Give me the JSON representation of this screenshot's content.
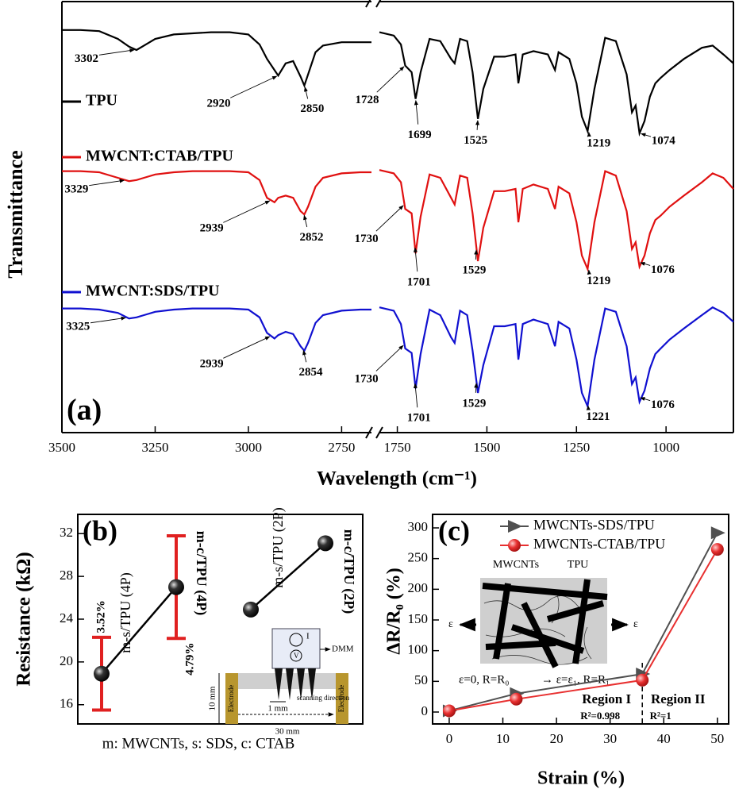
{
  "chart_data": [
    {
      "type": "spectrum",
      "label": "(a)",
      "ylabel": "Transmittance",
      "xlabel": "Wavelength (cm⁻¹)",
      "segments": [
        {
          "xlim": [
            3500,
            2670
          ],
          "xticks": [
            3500,
            3250,
            3000,
            2750
          ],
          "x": [
            3500,
            3450,
            3400,
            3350,
            3320,
            3300,
            3280,
            3250,
            3200,
            3150,
            3100,
            3050,
            3000,
            2970,
            2950,
            2930,
            2920,
            2900,
            2880,
            2860,
            2850,
            2840,
            2820,
            2800,
            2750,
            2700,
            2670
          ]
        },
        {
          "xlim": [
            1800,
            812
          ],
          "xticks": [
            1750,
            1500,
            1250,
            1000
          ],
          "x": [
            1800,
            1760,
            1740,
            1728,
            1710,
            1699,
            1685,
            1660,
            1630,
            1600,
            1590,
            1575,
            1555,
            1540,
            1525,
            1510,
            1480,
            1450,
            1420,
            1412,
            1400,
            1370,
            1330,
            1310,
            1300,
            1270,
            1250,
            1235,
            1219,
            1200,
            1170,
            1140,
            1110,
            1095,
            1085,
            1074,
            1060,
            1045,
            1030,
            1015,
            990,
            950,
            900,
            870,
            840,
            812
          ]
        }
      ],
      "series": [
        {
          "name": "TPU",
          "color": "#000000",
          "values": [
            [
              0.98,
              0.98,
              0.97,
              0.9,
              0.83,
              0.8,
              0.84,
              0.9,
              0.94,
              0.95,
              0.96,
              0.96,
              0.94,
              0.85,
              0.72,
              0.62,
              0.57,
              0.68,
              0.7,
              0.56,
              0.48,
              0.58,
              0.78,
              0.84,
              0.87,
              0.87,
              0.87
            ],
            [
              0.96,
              0.93,
              0.85,
              0.66,
              0.6,
              0.36,
              0.6,
              0.9,
              0.88,
              0.72,
              0.68,
              0.9,
              0.88,
              0.6,
              0.18,
              0.45,
              0.74,
              0.74,
              0.76,
              0.5,
              0.76,
              0.79,
              0.76,
              0.62,
              0.78,
              0.72,
              0.5,
              0.2,
              0.07,
              0.45,
              0.91,
              0.88,
              0.58,
              0.24,
              0.3,
              0.05,
              0.16,
              0.38,
              0.5,
              0.55,
              0.62,
              0.72,
              0.82,
              0.84,
              0.76,
              0.68
            ]
          ],
          "peaks": [
            3302,
            2920,
            2850,
            1728,
            1699,
            1525,
            1219,
            1074
          ]
        },
        {
          "name": "MWCNT:CTAB/TPU",
          "color": "#e01010",
          "values": [
            [
              0.96,
              0.96,
              0.95,
              0.9,
              0.87,
              0.88,
              0.9,
              0.93,
              0.95,
              0.96,
              0.96,
              0.96,
              0.95,
              0.88,
              0.72,
              0.68,
              0.72,
              0.74,
              0.72,
              0.6,
              0.57,
              0.64,
              0.82,
              0.9,
              0.94,
              0.95,
              0.95
            ],
            [
              0.97,
              0.94,
              0.86,
              0.62,
              0.58,
              0.22,
              0.55,
              0.93,
              0.9,
              0.72,
              0.66,
              0.92,
              0.9,
              0.58,
              0.15,
              0.45,
              0.78,
              0.78,
              0.8,
              0.5,
              0.8,
              0.84,
              0.8,
              0.62,
              0.82,
              0.76,
              0.5,
              0.2,
              0.08,
              0.5,
              0.96,
              0.92,
              0.6,
              0.26,
              0.32,
              0.1,
              0.2,
              0.4,
              0.52,
              0.56,
              0.64,
              0.74,
              0.86,
              0.94,
              0.9,
              0.8
            ]
          ],
          "peaks": [
            3329,
            2939,
            2852,
            1730,
            1701,
            1529,
            1219,
            1076
          ]
        },
        {
          "name": "MWCNT:SDS/TPU",
          "color": "#1010d0",
          "values": [
            [
              0.96,
              0.96,
              0.95,
              0.92,
              0.87,
              0.88,
              0.9,
              0.93,
              0.95,
              0.96,
              0.96,
              0.96,
              0.95,
              0.88,
              0.74,
              0.69,
              0.72,
              0.75,
              0.73,
              0.62,
              0.58,
              0.65,
              0.83,
              0.9,
              0.94,
              0.95,
              0.95
            ],
            [
              0.97,
              0.94,
              0.82,
              0.6,
              0.56,
              0.24,
              0.55,
              0.95,
              0.9,
              0.7,
              0.65,
              0.94,
              0.9,
              0.58,
              0.2,
              0.45,
              0.8,
              0.8,
              0.82,
              0.5,
              0.82,
              0.86,
              0.82,
              0.62,
              0.84,
              0.78,
              0.5,
              0.2,
              0.08,
              0.5,
              0.96,
              0.93,
              0.62,
              0.28,
              0.34,
              0.12,
              0.22,
              0.42,
              0.55,
              0.6,
              0.68,
              0.78,
              0.9,
              0.97,
              0.92,
              0.84
            ]
          ],
          "peaks": [
            3325,
            2939,
            2854,
            1730,
            1701,
            1529,
            1221,
            1076
          ]
        }
      ]
    },
    {
      "type": "scatter",
      "label": "(b)",
      "ylabel": "Resistance (kΩ)",
      "ylim": [
        14.2,
        33.8
      ],
      "yticks": [
        16,
        20,
        24,
        28,
        32
      ],
      "marker_color": "#000000",
      "error_color": "#e02020",
      "points": [
        {
          "label": "m-s/TPU (4P)",
          "label_color": "#000000",
          "value": 18.9,
          "error": 3.4,
          "error_label": "3.52%"
        },
        {
          "label": "m-c/TPU (4P)",
          "label_color": "#e02020",
          "value": 27.0,
          "error": 4.8,
          "error_label": "4.79%"
        },
        {
          "label": "m-s/TPU (2P)",
          "label_color": "#000000",
          "value": 24.9
        },
        {
          "label": "m-c/TPU (2P)",
          "label_color": "#e02020",
          "value": 31.1
        }
      ],
      "footnote": "m: MWCNTs, s: SDS, c: CTAB",
      "inset": {
        "dmm": "DMM",
        "current": "I",
        "voltage": "V",
        "spacing": "1 mm",
        "direction": "scanning direction",
        "height": "10 mm",
        "width": "30 mm",
        "electrode": "Electrode"
      }
    },
    {
      "type": "line",
      "label": "(c)",
      "xlabel": "Strain (%)",
      "ylabel": "ΔR/R₀ (%)",
      "xlim": [
        -3.1,
        52.1
      ],
      "ylim": [
        -19.4,
        322
      ],
      "xticks": [
        0,
        10,
        20,
        30,
        40,
        50
      ],
      "yticks": [
        0,
        50,
        100,
        150,
        200,
        250,
        300
      ],
      "series": [
        {
          "name": "MWCNTs-SDS/TPU",
          "color": "#505050",
          "marker": "triangle",
          "x": [
            0,
            12.5,
            36,
            50
          ],
          "values": [
            2,
            30,
            62,
            292
          ]
        },
        {
          "name": "MWCNTs-CTAB/TPU",
          "color": "#e83030",
          "marker": "circle",
          "x": [
            0,
            12.5,
            36,
            50
          ],
          "values": [
            2,
            21,
            52,
            265
          ]
        }
      ],
      "vline": 36,
      "regions": [
        {
          "label": "Region I",
          "r2": "R²=0.998"
        },
        {
          "label": "Region II",
          "r2": "R²=1"
        }
      ],
      "inset": {
        "tube": "MWCNTs",
        "matrix": "TPU",
        "strain": "ε",
        "before": "ε=0,  R=R₀",
        "after": "→ ε=ε₁, R=R₁"
      }
    }
  ]
}
